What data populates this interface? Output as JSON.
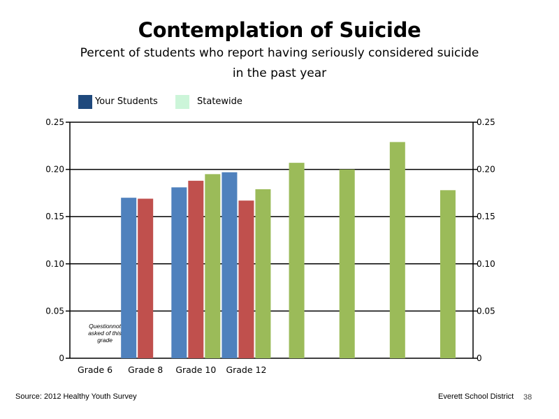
{
  "chart_data": {
    "type": "bar",
    "title": "Contemplation of Suicide",
    "subtitle_line1": "Percent of students who report having seriously considered suicide",
    "subtitle_line2": "in the past year",
    "categories": [
      "Grade 6",
      "Grade 8",
      "Grade 10",
      "Grade 12"
    ],
    "series": [
      {
        "values": [
          null,
          0.17,
          0.181,
          0.197
        ],
        "color": "#4F81BD"
      },
      {
        "values": [
          null,
          0.169,
          0.188,
          0.167
        ],
        "color": "#C0504D"
      },
      {
        "values": [
          null,
          null,
          0.195,
          0.179
        ],
        "color": "#9BBB59"
      }
    ],
    "extra_bars": {
      "values": [
        0.207,
        0.2,
        0.229,
        0.178
      ],
      "color": "#9BBB59"
    },
    "ylim": [
      0,
      0.25
    ],
    "yticks": [
      "0",
      "0.05",
      "0.10",
      "0.15",
      "0.20",
      "0.25"
    ],
    "secondary_axis": true,
    "grid": true,
    "legend_position": "top-left",
    "annotation": {
      "lines": [
        "Questionnot",
        "asked of this",
        "grade"
      ]
    }
  },
  "legend": [
    {
      "label": "Your Students",
      "color": "#1F497D"
    },
    {
      "label": "Statewide",
      "color": "#CCF5D9"
    }
  ],
  "footer": {
    "source": "Source: 2012 Healthy Youth Survey",
    "district": "Everett School District",
    "page_number": "38"
  }
}
